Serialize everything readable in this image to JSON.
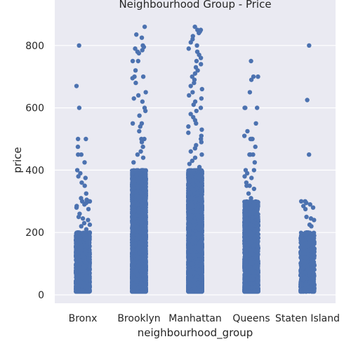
{
  "chart_data": {
    "type": "scatter",
    "subtype": "strip",
    "title": "Neighbourhood Group - Price",
    "xlabel": "neighbourhood_group",
    "ylabel": "price",
    "categories": [
      "Bronx",
      "Brooklyn",
      "Manhattan",
      "Queens",
      "Staten Island"
    ],
    "ylim": [
      -30,
      900
    ],
    "yticks": [
      0,
      200,
      400,
      600,
      800
    ],
    "grid": true,
    "colors": {
      "point": "#4c72b0",
      "background": "#eaeaf2",
      "grid": "#ffffff"
    },
    "series": [
      {
        "category": "Bronx",
        "values": [
          800,
          670,
          600,
          500,
          500,
          475,
          450,
          450,
          425,
          400,
          390,
          380,
          375,
          360,
          350,
          325,
          310,
          305,
          300,
          300,
          300,
          295,
          290,
          285,
          280,
          275,
          260,
          250,
          245,
          240,
          230,
          225,
          220,
          210,
          200,
          200,
          200,
          199,
          195,
          190,
          185,
          180,
          175,
          170,
          165,
          160,
          155,
          150,
          145,
          140,
          135,
          130,
          125,
          120,
          115,
          110,
          105,
          100,
          95,
          90,
          85,
          80,
          75,
          70,
          65,
          60,
          55,
          50,
          45,
          40,
          35,
          30,
          25,
          20,
          15
        ]
      },
      {
        "category": "Brooklyn",
        "values": [
          860,
          835,
          825,
          800,
          795,
          790,
          785,
          780,
          775,
          750,
          750,
          720,
          700,
          700,
          695,
          680,
          650,
          640,
          630,
          620,
          600,
          590,
          575,
          550,
          550,
          540,
          525,
          500,
          500,
          490,
          475,
          460,
          450,
          440,
          425,
          400,
          390
        ]
      },
      {
        "category": "Manhattan",
        "values": [
          860,
          850,
          850,
          845,
          840,
          830,
          820,
          810,
          800,
          790,
          780,
          770,
          760,
          750,
          740,
          730,
          720,
          710,
          700,
          690,
          680,
          670,
          660,
          650,
          640,
          630,
          620,
          610,
          600,
          590,
          580,
          570,
          560,
          550,
          540,
          530,
          520,
          510,
          500,
          490,
          480,
          470,
          460,
          450,
          440,
          430,
          420,
          410,
          400
        ]
      },
      {
        "category": "Queens",
        "values": [
          750,
          700,
          700,
          690,
          650,
          600,
          600,
          600,
          550,
          525,
          510,
          500,
          500,
          500,
          475,
          450,
          450,
          450,
          425,
          400,
          400,
          390,
          380,
          375,
          360,
          350,
          350,
          340,
          325,
          310,
          300
        ]
      },
      {
        "category": "Staten Island",
        "values": [
          800,
          625,
          450,
          300,
          300,
          295,
          290,
          285,
          280,
          275,
          250,
          245,
          240,
          225,
          220,
          200,
          200,
          199,
          195,
          190,
          185,
          180,
          175,
          170,
          165,
          160,
          155,
          150,
          145,
          140,
          135,
          130,
          125,
          120,
          115,
          110,
          105,
          100,
          95,
          90,
          85,
          80,
          75,
          70,
          65,
          60,
          55,
          50,
          45,
          40,
          35,
          30,
          25,
          20,
          15
        ]
      }
    ]
  }
}
